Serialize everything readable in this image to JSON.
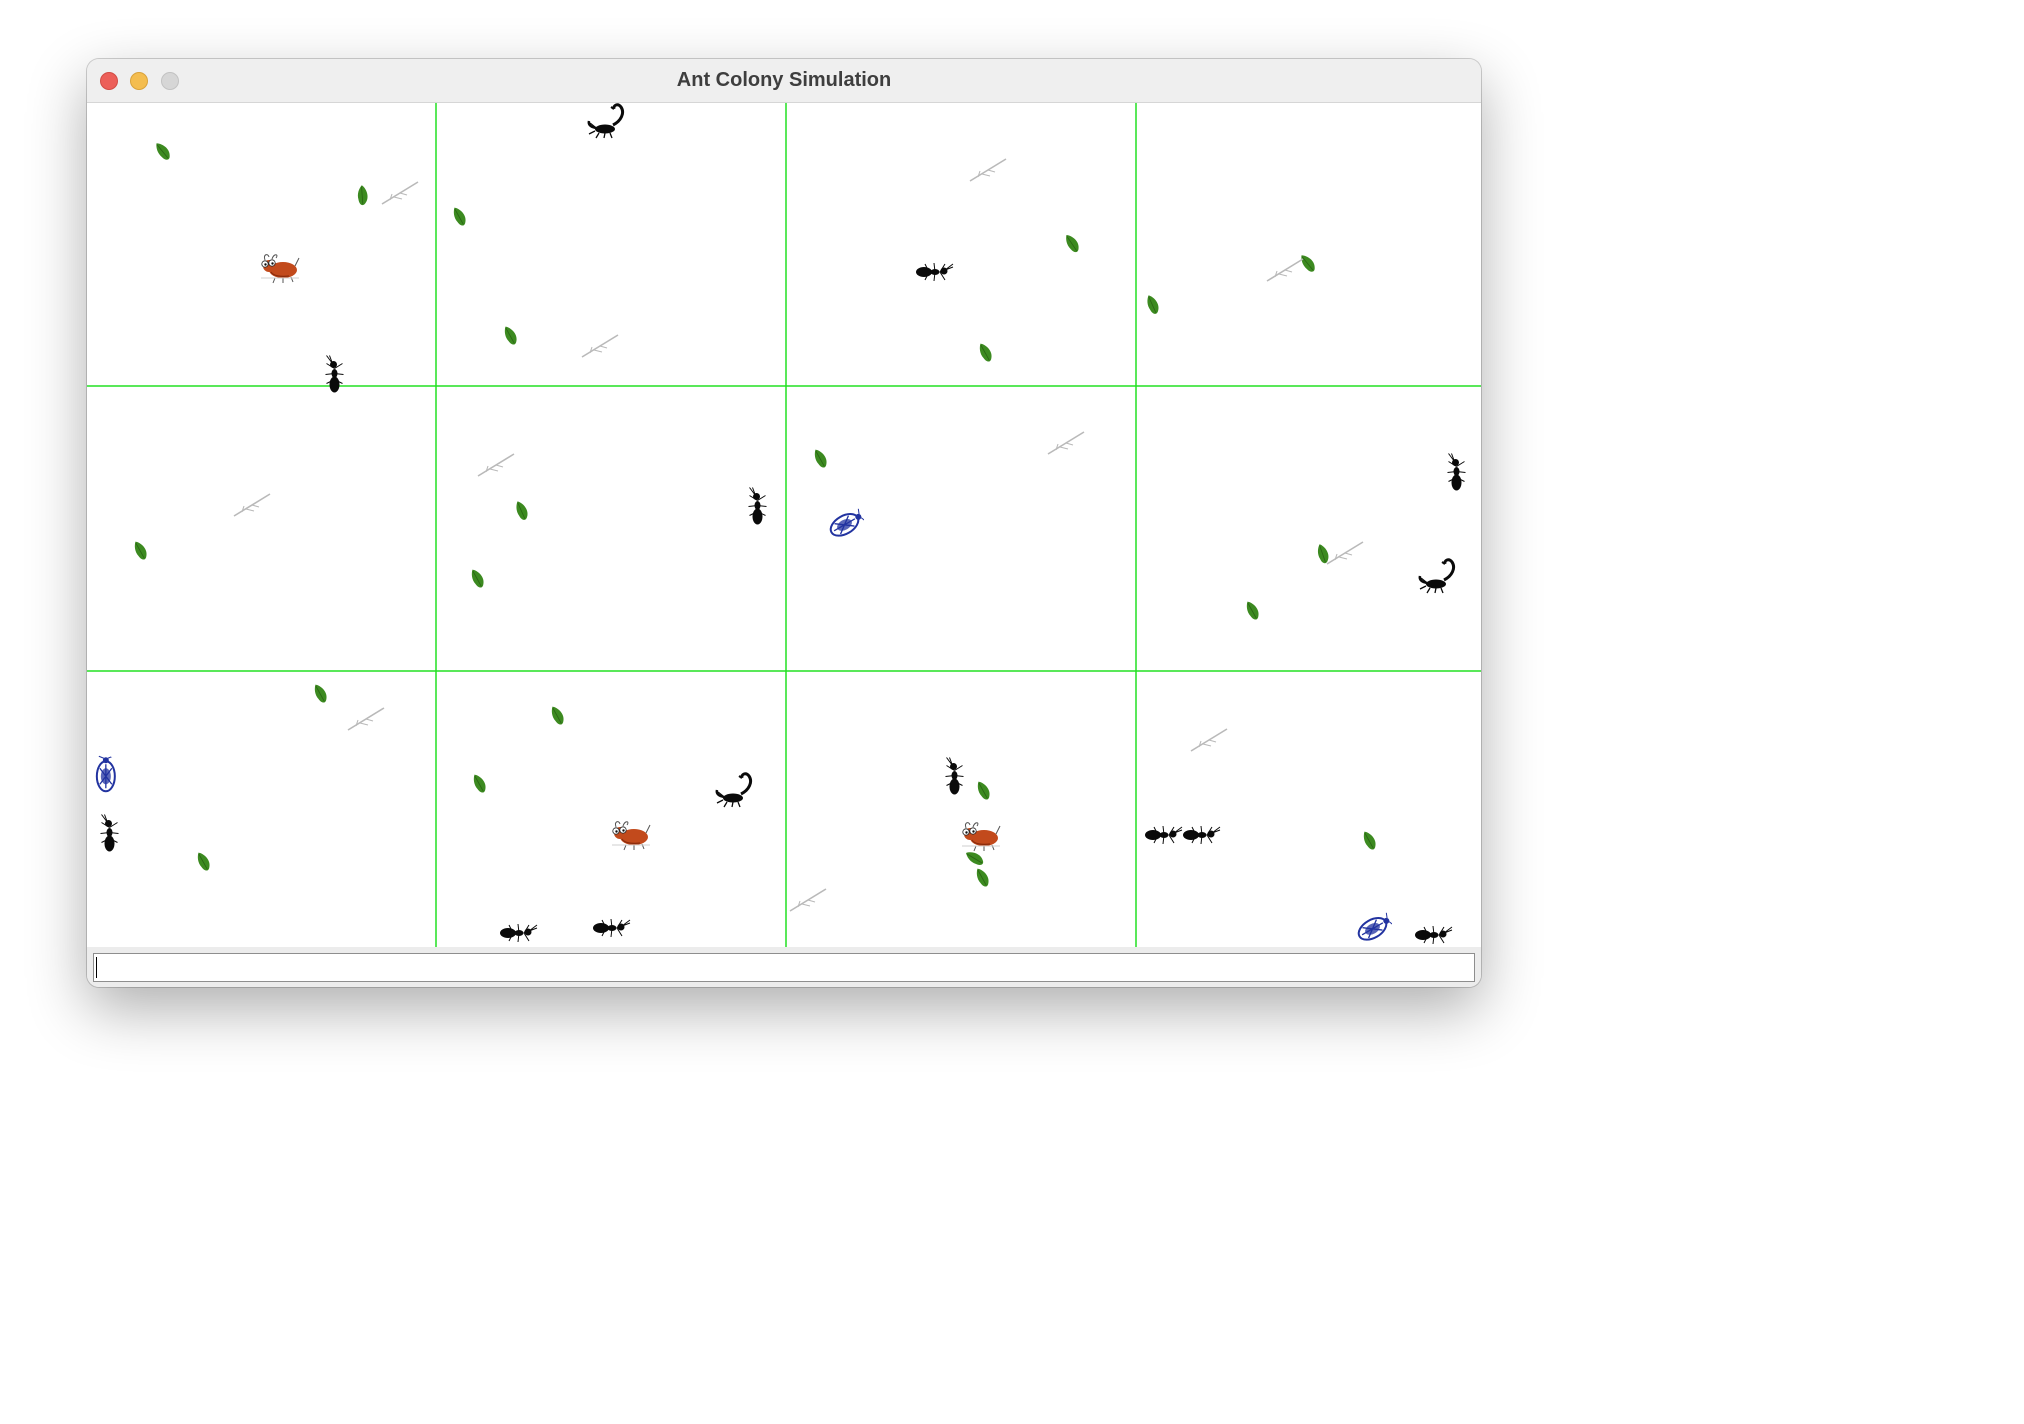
{
  "window": {
    "title": "Ant Colony Simulation"
  },
  "grid": {
    "columns": 4,
    "rows": 3,
    "line_color": "#22e022"
  },
  "legend_of_sprites": {
    "leaf": "leaf-icon",
    "twig": "twig-icon",
    "ant": "ant-icon",
    "scorpion": "scorpion-icon",
    "beetle": "beetle-icon",
    "termite": "termite-icon"
  },
  "colors": {
    "leaf": "#3c8a20",
    "beetle": "#2233a0",
    "termite": "#c24a1c",
    "twig": "#b9b9b9",
    "ant": "#0a0a0a"
  },
  "command": {
    "value": "",
    "placeholder": ""
  }
}
